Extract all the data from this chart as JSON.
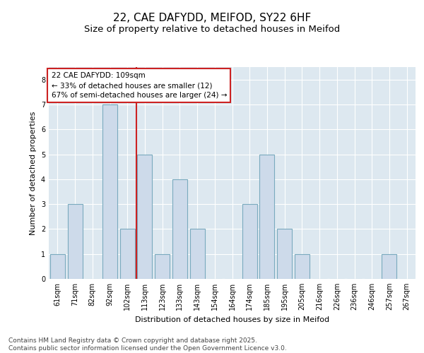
{
  "title_line1": "22, CAE DAFYDD, MEIFOD, SY22 6HF",
  "title_line2": "Size of property relative to detached houses in Meifod",
  "xlabel": "Distribution of detached houses by size in Meifod",
  "ylabel": "Number of detached properties",
  "categories": [
    "61sqm",
    "71sqm",
    "82sqm",
    "92sqm",
    "102sqm",
    "113sqm",
    "123sqm",
    "133sqm",
    "143sqm",
    "154sqm",
    "164sqm",
    "174sqm",
    "185sqm",
    "195sqm",
    "205sqm",
    "216sqm",
    "226sqm",
    "236sqm",
    "246sqm",
    "257sqm",
    "267sqm"
  ],
  "values": [
    1,
    3,
    0,
    7,
    2,
    5,
    1,
    4,
    2,
    0,
    0,
    3,
    5,
    2,
    1,
    0,
    0,
    0,
    0,
    1,
    0
  ],
  "bar_color": "#cddaea",
  "bar_edge_color": "#7aaabe",
  "vline_x_index": 4,
  "vline_color": "#cc2222",
  "annotation_line1": "22 CAE DAFYDD: 109sqm",
  "annotation_line2": "← 33% of detached houses are smaller (12)",
  "annotation_line3": "67% of semi-detached houses are larger (24) →",
  "annotation_box_color": "#ffffff",
  "annotation_box_edge": "#cc2222",
  "ylim": [
    0,
    8.5
  ],
  "yticks": [
    0,
    1,
    2,
    3,
    4,
    5,
    6,
    7,
    8
  ],
  "fig_bg_color": "#ffffff",
  "plot_bg_color": "#dde8f0",
  "grid_color": "#ffffff",
  "footer_line1": "Contains HM Land Registry data © Crown copyright and database right 2025.",
  "footer_line2": "Contains public sector information licensed under the Open Government Licence v3.0.",
  "title_fontsize": 11,
  "subtitle_fontsize": 9.5,
  "axis_label_fontsize": 8,
  "tick_fontsize": 7,
  "annotation_fontsize": 7.5,
  "footer_fontsize": 6.5
}
